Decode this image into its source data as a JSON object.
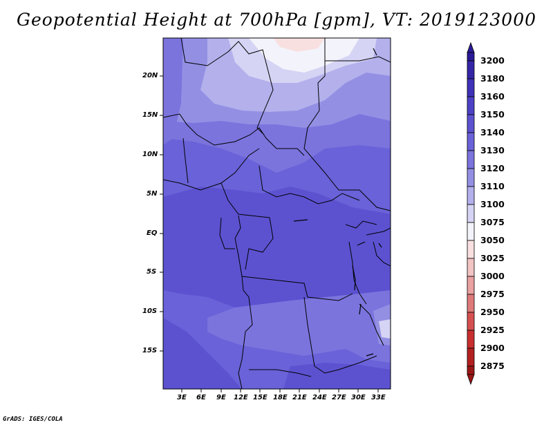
{
  "title": "Geopotential Height at 700hPa [gpm], VT: 2019123000",
  "credit": "GrADS: IGES/COLA",
  "map": {
    "lat_labels": [
      "20N",
      "15N",
      "10N",
      "5N",
      "EQ",
      "5S",
      "10S",
      "15S"
    ],
    "lon_labels": [
      "3E",
      "6E",
      "9E",
      "12E",
      "15E",
      "18E",
      "21E",
      "24E",
      "27E",
      "30E",
      "33E"
    ]
  },
  "colorbar": {
    "levels": [
      "3200",
      "3180",
      "3160",
      "3150",
      "3140",
      "3130",
      "3120",
      "3110",
      "3100",
      "3075",
      "3050",
      "3025",
      "3000",
      "2975",
      "2950",
      "2925",
      "2900",
      "2875"
    ],
    "colors": [
      "#2a1a96",
      "#3526a8",
      "#3f32b8",
      "#4d42c6",
      "#5c52d0",
      "#6a62d8",
      "#7b74dd",
      "#9390e4",
      "#b3b0ec",
      "#d6d4f4",
      "#f3f3fb",
      "#f9e0e0",
      "#f2c4c4",
      "#e9a1a1",
      "#df7a7a",
      "#d65050",
      "#c92f2f",
      "#b42020",
      "#9b1616"
    ]
  }
}
